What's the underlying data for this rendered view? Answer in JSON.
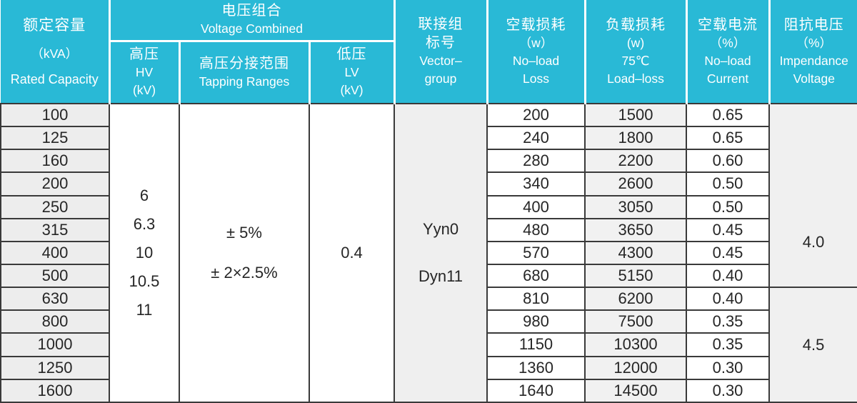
{
  "colors": {
    "header_bg": "#29b9d6",
    "header_text": "#ffffff",
    "grid_line": "#3a3a3a",
    "shaded_cell_bg": "#efefef",
    "cell_text": "#262626"
  },
  "header": {
    "rated_capacity": {
      "zh": "额定容量",
      "unit": "（kVA）",
      "en": "Rated Capacity"
    },
    "voltage_combined": {
      "zh": "电压组合",
      "en": "Voltage Combined"
    },
    "hv": {
      "zh": "高压",
      "en": "HV",
      "unit": "(kV)"
    },
    "tapping_ranges": {
      "zh": "高压分接范围",
      "en": "Tapping Ranges"
    },
    "lv": {
      "zh": "低压",
      "en": "LV",
      "unit": "(kV)"
    },
    "vector_group": {
      "zh1": "联接组",
      "zh2": "标号",
      "en1": "Vector–",
      "en2": "group"
    },
    "no_load_loss": {
      "zh": "空载损耗",
      "unit": "（w）",
      "en1": "No–load",
      "en2": "Loss"
    },
    "load_loss": {
      "zh": "负载损耗",
      "unit": "(w)",
      "temp": "75℃",
      "en": "Load–loss"
    },
    "no_load_current": {
      "zh": "空载电流",
      "unit": "（%）",
      "en1": "No–load",
      "en2": "Current"
    },
    "impedance_voltage": {
      "zh": "阻抗电压",
      "unit": "（%）",
      "en1": "Impendance",
      "en2": "Voltage"
    }
  },
  "merged": {
    "hv_kv_values": [
      "6",
      "6.3",
      "10",
      "10.5",
      "11"
    ],
    "tapping_ranges": [
      "± 5%",
      "± 2×2.5%"
    ],
    "lv_kv": "0.4",
    "vector_groups": [
      "Yyn0",
      "Dyn11"
    ],
    "impedance_groups": [
      {
        "value": "4.0",
        "row_span": 8
      },
      {
        "value": "4.5",
        "row_span": 5
      }
    ]
  },
  "rows": [
    {
      "capacity": "100",
      "no_load_loss": "200",
      "load_loss": "1500",
      "no_load_current": "0.65"
    },
    {
      "capacity": "125",
      "no_load_loss": "240",
      "load_loss": "1800",
      "no_load_current": "0.65"
    },
    {
      "capacity": "160",
      "no_load_loss": "280",
      "load_loss": "2200",
      "no_load_current": "0.60"
    },
    {
      "capacity": "200",
      "no_load_loss": "340",
      "load_loss": "2600",
      "no_load_current": "0.50"
    },
    {
      "capacity": "250",
      "no_load_loss": "400",
      "load_loss": "3050",
      "no_load_current": "0.50"
    },
    {
      "capacity": "315",
      "no_load_loss": "480",
      "load_loss": "3650",
      "no_load_current": "0.45"
    },
    {
      "capacity": "400",
      "no_load_loss": "570",
      "load_loss": "4300",
      "no_load_current": "0.45"
    },
    {
      "capacity": "500",
      "no_load_loss": "680",
      "load_loss": "5150",
      "no_load_current": "0.40"
    },
    {
      "capacity": "630",
      "no_load_loss": "810",
      "load_loss": "6200",
      "no_load_current": "0.40"
    },
    {
      "capacity": "800",
      "no_load_loss": "980",
      "load_loss": "7500",
      "no_load_current": "0.35"
    },
    {
      "capacity": "1000",
      "no_load_loss": "1150",
      "load_loss": "10300",
      "no_load_current": "0.35"
    },
    {
      "capacity": "1250",
      "no_load_loss": "1360",
      "load_loss": "12000",
      "no_load_current": "0.30"
    },
    {
      "capacity": "1600",
      "no_load_loss": "1640",
      "load_loss": "14500",
      "no_load_current": "0.30"
    }
  ]
}
